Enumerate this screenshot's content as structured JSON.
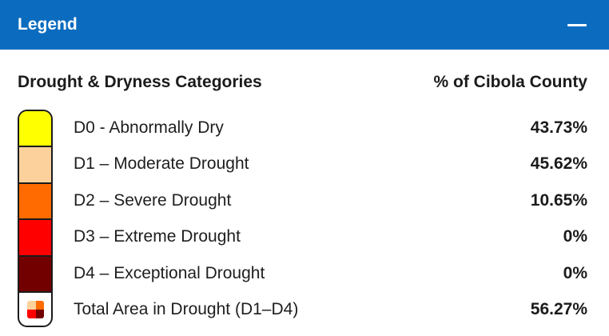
{
  "header": {
    "title": "Legend",
    "collapse_icon": "minus-icon"
  },
  "columns": {
    "category": "Drought & Dryness Categories",
    "percent": "% of Cibola County"
  },
  "rows": [
    {
      "label": "D0 - Abnormally Dry",
      "percent": "43.73%",
      "color": "#ffff00"
    },
    {
      "label": "D1 – Moderate Drought",
      "percent": "45.62%",
      "color": "#fcd19c"
    },
    {
      "label": "D2 – Severe Drought",
      "percent": "10.65%",
      "color": "#ff6b00"
    },
    {
      "label": "D3 – Extreme Drought",
      "percent": "0%",
      "color": "#ff0000"
    },
    {
      "label": "D4 – Exceptional Drought",
      "percent": "0%",
      "color": "#730000"
    },
    {
      "label": "Total Area in Drought (D1–D4)",
      "percent": "56.27%",
      "icon": "drought-mix-icon"
    }
  ],
  "colors": {
    "header_bg": "#0b6cbf"
  }
}
